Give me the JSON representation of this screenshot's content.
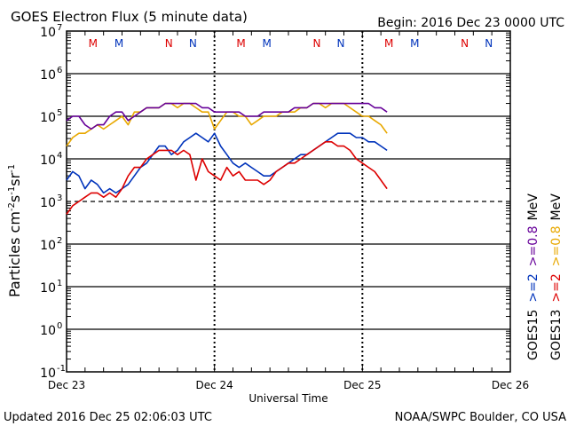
{
  "chart_data": {
    "type": "line",
    "title": "GOES Electron Flux (5 minute data)",
    "begin_label": "Begin: 2016 Dec 23 0000 UTC",
    "xlabel": "Universal Time",
    "ylabel": "Particles cm⁻²s⁻¹sr⁻¹",
    "ylabel_parts": {
      "base": "Particles cm",
      "e1": "-2",
      "s": "s",
      "e2": "-1",
      "sr": "sr",
      "e3": "-1"
    },
    "x_range_hours": [
      0,
      72
    ],
    "x_ticks": [
      {
        "hour": 0,
        "label": "Dec 23"
      },
      {
        "hour": 24,
        "label": "Dec 24"
      },
      {
        "hour": 48,
        "label": "Dec 25"
      },
      {
        "hour": 72,
        "label": "Dec 26"
      }
    ],
    "y_range_log10": [
      -1,
      7
    ],
    "y_ticks": [
      {
        "exp": 7,
        "label": "7"
      },
      {
        "exp": 6,
        "label": "6"
      },
      {
        "exp": 5,
        "label": "5"
      },
      {
        "exp": 4,
        "label": "4"
      },
      {
        "exp": 3,
        "label": "3"
      },
      {
        "exp": 2,
        "label": "2"
      },
      {
        "exp": 1,
        "label": "1"
      },
      {
        "exp": 0,
        "label": "0"
      },
      {
        "exp": -1,
        "label": "-1"
      }
    ],
    "y_tick_base": "10",
    "threshold_log10": 3,
    "mn_markers": [
      {
        "hour": 4.3,
        "label": "M",
        "color": "#dd0000"
      },
      {
        "hour": 8.5,
        "label": "M",
        "color": "#0033bb"
      },
      {
        "hour": 16.6,
        "label": "N",
        "color": "#dd0000"
      },
      {
        "hour": 20.5,
        "label": "N",
        "color": "#0033bb"
      },
      {
        "hour": 28.3,
        "label": "M",
        "color": "#dd0000"
      },
      {
        "hour": 32.5,
        "label": "M",
        "color": "#0033bb"
      },
      {
        "hour": 40.6,
        "label": "N",
        "color": "#dd0000"
      },
      {
        "hour": 44.5,
        "label": "N",
        "color": "#0033bb"
      },
      {
        "hour": 52.3,
        "label": "M",
        "color": "#dd0000"
      },
      {
        "hour": 56.5,
        "label": "M",
        "color": "#0033bb"
      },
      {
        "hour": 64.6,
        "label": "N",
        "color": "#dd0000"
      },
      {
        "hour": 68.5,
        "label": "N",
        "color": "#0033bb"
      }
    ],
    "series": [
      {
        "name": "GOES13 >=0.8 MeV",
        "color": "#e8a800",
        "x": [
          0,
          1,
          2,
          3,
          4,
          5,
          6,
          7,
          8,
          9,
          10,
          11,
          12,
          13,
          14,
          15,
          16,
          17,
          18,
          19,
          20,
          21,
          22,
          23,
          24,
          25,
          26,
          27,
          28,
          29,
          30,
          31,
          32,
          33,
          34,
          35,
          36,
          37,
          38,
          39,
          40,
          41,
          42,
          43,
          44,
          45,
          46,
          47,
          48,
          49,
          50,
          51,
          52
        ],
        "y": [
          4.3,
          4.5,
          4.6,
          4.6,
          4.7,
          4.8,
          4.7,
          4.8,
          4.9,
          5.0,
          4.8,
          5.1,
          5.1,
          5.2,
          5.2,
          5.2,
          5.3,
          5.3,
          5.2,
          5.3,
          5.3,
          5.2,
          5.1,
          5.1,
          4.7,
          4.9,
          5.1,
          5.1,
          5.0,
          5.0,
          4.8,
          4.9,
          5.0,
          5.0,
          5.0,
          5.1,
          5.1,
          5.1,
          5.2,
          5.2,
          5.3,
          5.3,
          5.2,
          5.3,
          5.3,
          5.3,
          5.2,
          5.1,
          5.0,
          5.0,
          4.9,
          4.8,
          4.6
        ]
      },
      {
        "name": "GOES15 >=0.8 MeV",
        "color": "#660099",
        "x": [
          0,
          1,
          2,
          3,
          4,
          5,
          6,
          7,
          8,
          9,
          10,
          11,
          12,
          13,
          14,
          15,
          16,
          17,
          18,
          19,
          20,
          21,
          22,
          23,
          24,
          25,
          26,
          27,
          28,
          29,
          30,
          31,
          32,
          33,
          34,
          35,
          36,
          37,
          38,
          39,
          40,
          41,
          42,
          43,
          44,
          45,
          46,
          47,
          48,
          49,
          50,
          51,
          52
        ],
        "y": [
          4.9,
          5.0,
          5.0,
          4.8,
          4.7,
          4.8,
          4.8,
          5.0,
          5.1,
          5.1,
          4.9,
          5.0,
          5.1,
          5.2,
          5.2,
          5.2,
          5.3,
          5.3,
          5.3,
          5.3,
          5.3,
          5.3,
          5.2,
          5.2,
          5.1,
          5.1,
          5.1,
          5.1,
          5.1,
          5.0,
          5.0,
          5.0,
          5.1,
          5.1,
          5.1,
          5.1,
          5.1,
          5.2,
          5.2,
          5.2,
          5.3,
          5.3,
          5.3,
          5.3,
          5.3,
          5.3,
          5.3,
          5.3,
          5.3,
          5.3,
          5.2,
          5.2,
          5.1
        ]
      },
      {
        "name": "GOES15 >=2 MeV",
        "color": "#0033bb",
        "x": [
          0,
          1,
          2,
          3,
          4,
          5,
          6,
          7,
          8,
          9,
          10,
          11,
          12,
          13,
          14,
          15,
          16,
          17,
          18,
          19,
          20,
          21,
          22,
          23,
          24,
          25,
          26,
          27,
          28,
          29,
          30,
          31,
          32,
          33,
          34,
          35,
          36,
          37,
          38,
          39,
          40,
          41,
          42,
          43,
          44,
          45,
          46,
          47,
          48,
          49,
          50,
          51,
          52
        ],
        "y": [
          3.5,
          3.7,
          3.6,
          3.3,
          3.5,
          3.4,
          3.2,
          3.3,
          3.2,
          3.3,
          3.4,
          3.6,
          3.8,
          3.9,
          4.1,
          4.3,
          4.3,
          4.1,
          4.2,
          4.4,
          4.5,
          4.6,
          4.5,
          4.4,
          4.6,
          4.3,
          4.1,
          3.9,
          3.8,
          3.9,
          3.8,
          3.7,
          3.6,
          3.6,
          3.7,
          3.8,
          3.9,
          4.0,
          4.1,
          4.1,
          4.2,
          4.3,
          4.4,
          4.5,
          4.6,
          4.6,
          4.6,
          4.5,
          4.5,
          4.4,
          4.4,
          4.3,
          4.2
        ]
      },
      {
        "name": "GOES13 >=2 MeV",
        "color": "#dd0000",
        "x": [
          0,
          1,
          2,
          3,
          4,
          5,
          6,
          7,
          8,
          9,
          10,
          11,
          12,
          13,
          14,
          15,
          16,
          17,
          18,
          19,
          20,
          21,
          22,
          23,
          24,
          25,
          26,
          27,
          28,
          29,
          30,
          31,
          32,
          33,
          34,
          35,
          36,
          37,
          38,
          39,
          40,
          41,
          42,
          43,
          44,
          45,
          46,
          47,
          48,
          49,
          50,
          51,
          52
        ],
        "y": [
          2.7,
          2.9,
          3.0,
          3.1,
          3.2,
          3.2,
          3.1,
          3.2,
          3.1,
          3.3,
          3.6,
          3.8,
          3.8,
          4.0,
          4.1,
          4.2,
          4.2,
          4.2,
          4.1,
          4.2,
          4.1,
          3.5,
          4.0,
          3.7,
          3.6,
          3.5,
          3.8,
          3.6,
          3.7,
          3.5,
          3.5,
          3.5,
          3.4,
          3.5,
          3.7,
          3.8,
          3.9,
          3.9,
          4.0,
          4.1,
          4.2,
          4.3,
          4.4,
          4.4,
          4.3,
          4.3,
          4.2,
          4.0,
          3.9,
          3.8,
          3.7,
          3.5,
          3.3
        ]
      }
    ],
    "legend": [
      {
        "text": "GOES13",
        "color": "#000000"
      },
      {
        "text": ">=2",
        "color": "#dd0000"
      },
      {
        "text": ">=0.8",
        "color": "#e8a800"
      },
      {
        "text": "MeV",
        "color": "#000000"
      },
      {
        "text": "GOES15",
        "color": "#000000"
      },
      {
        "text": ">=2",
        "color": "#0033bb"
      },
      {
        "text": ">=0.8",
        "color": "#660099"
      },
      {
        "text": "MeV",
        "color": "#000000"
      }
    ]
  },
  "footer": {
    "updated": "Updated 2016 Dec 25 02:06:03 UTC",
    "credit": "NOAA/SWPC Boulder, CO USA"
  }
}
